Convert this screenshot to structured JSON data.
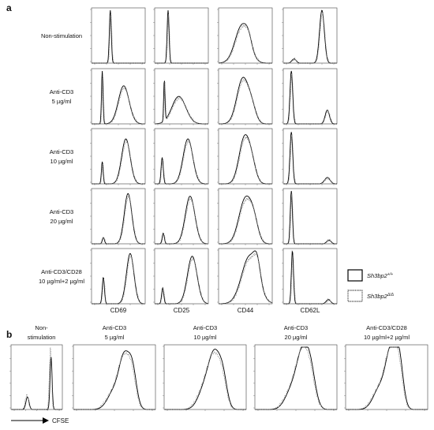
{
  "panel_a": {
    "letter": "a",
    "conditions": [
      {
        "lines": [
          "Non-stimulation"
        ]
      },
      {
        "lines": [
          "Anti-CD3",
          "5 µg/ml"
        ]
      },
      {
        "lines": [
          "Anti-CD3",
          "10 µg/ml"
        ]
      },
      {
        "lines": [
          "Anti-CD3",
          "20 µg/ml"
        ]
      },
      {
        "lines": [
          "Anti-CD3/CD28",
          "10 µg/ml+2 µg/ml"
        ]
      }
    ],
    "markers": [
      "CD69",
      "CD25",
      "CD44",
      "CD62L"
    ]
  },
  "legend": {
    "items": [
      {
        "label": "Sh3bp2",
        "sup": "+/+",
        "style": "solid"
      },
      {
        "label": "Sh3bp2",
        "sup": "Δ/Δ",
        "style": "dotted"
      }
    ]
  },
  "panel_b": {
    "letter": "b",
    "conditions": [
      {
        "lines": [
          "Non-",
          "stimulation"
        ]
      },
      {
        "lines": [
          "Anti-CD3",
          "5 µg/ml"
        ]
      },
      {
        "lines": [
          "Anti-CD3",
          "10 µg/ml"
        ]
      },
      {
        "lines": [
          "Anti-CD3",
          "20 µg/ml"
        ]
      },
      {
        "lines": [
          "Anti-CD3/CD28",
          "10 µg/ml+2 µg/ml"
        ]
      }
    ],
    "axis_label": "CFSE"
  },
  "chart_data": [
    {
      "type": "line",
      "panel": "a",
      "description_rows": "rows = conditions, columns = markers; two overlaid histograms per plot",
      "series_styles": [
        "solid",
        "dotted"
      ]
    },
    {
      "type": "line",
      "panel": "b",
      "series_styles": [
        "solid",
        "dotted"
      ]
    }
  ]
}
